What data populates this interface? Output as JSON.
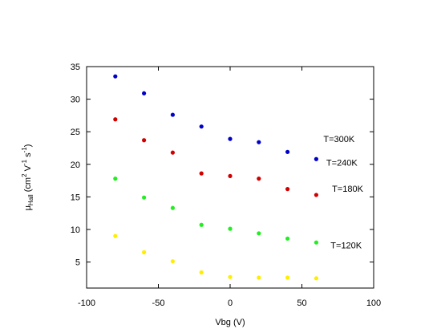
{
  "chart_data": {
    "type": "scatter",
    "xlabel": "Vbg (V)",
    "ylabel": {
      "main": "μ",
      "sub": "Hall",
      "rest": " (cm",
      "sup1": "2",
      "mid": " V",
      "sup2": "-1",
      "mid2": " s",
      "sup3": "-1",
      "end": ")"
    },
    "xlim": [
      -100,
      100
    ],
    "ylim": [
      1,
      35
    ],
    "xticks": [
      -100,
      -50,
      0,
      50,
      100
    ],
    "yticks": [
      5,
      10,
      15,
      20,
      25,
      30,
      35
    ],
    "grid": false,
    "series": [
      {
        "name": "T=300K",
        "color": "#0000c8",
        "x": [
          -80,
          -60,
          -40,
          -20,
          0,
          20,
          40,
          60
        ],
        "y": [
          33.5,
          30.9,
          27.6,
          25.8,
          23.9,
          23.4,
          21.9,
          20.8
        ]
      },
      {
        "name": "T=240K",
        "color": "#d00000",
        "x": [
          -80,
          -60,
          -40,
          -20,
          0,
          20,
          40,
          60
        ],
        "y": [
          26.9,
          23.7,
          21.8,
          18.6,
          18.2,
          17.8,
          16.2,
          15.3
        ]
      },
      {
        "name": "T=180K",
        "color": "#22ee22",
        "x": [
          -80,
          -60,
          -40,
          -20,
          0,
          20,
          40,
          60
        ],
        "y": [
          17.8,
          14.9,
          13.3,
          10.7,
          10.1,
          9.4,
          8.6,
          8.0
        ]
      },
      {
        "name": "T=120K",
        "color": "#ffee00",
        "x": [
          -80,
          -60,
          -40,
          -20,
          0,
          20,
          40,
          60
        ],
        "y": [
          9.0,
          6.5,
          5.1,
          3.4,
          2.7,
          2.6,
          2.6,
          2.5
        ]
      }
    ],
    "annotations": [
      {
        "text": "T=300K",
        "x": 65,
        "y": 23.9
      },
      {
        "text": "T=240K",
        "x": 67,
        "y": 20.3
      },
      {
        "text": "T=180K",
        "x": 71,
        "y": 16.3
      },
      {
        "text": "T=120K",
        "x": 70,
        "y": 7.6
      }
    ]
  }
}
